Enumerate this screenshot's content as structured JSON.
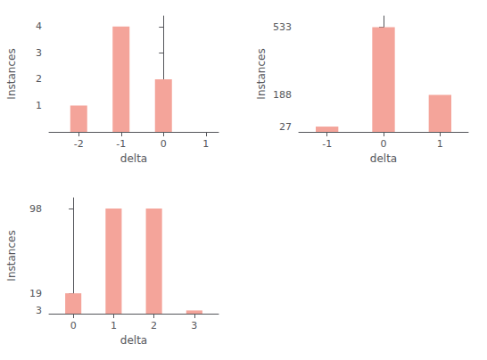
{
  "chart_data": [
    {
      "type": "bar",
      "x": [
        -2,
        -1,
        0
      ],
      "values": [
        1,
        4,
        2
      ],
      "xlim": [
        -2.7,
        1.3
      ],
      "ylim": [
        0,
        4.4
      ],
      "xticks": [
        -2,
        -1,
        0,
        1
      ],
      "yticks": [
        1,
        2,
        3,
        4
      ],
      "xlabel": "delta",
      "ylabel": "Instances",
      "color": "#F4A49A",
      "grid": false
    },
    {
      "type": "bar",
      "x": [
        -1,
        0,
        1
      ],
      "values": [
        27,
        533,
        188
      ],
      "xlim": [
        -1.5,
        1.5
      ],
      "ylim": [
        0,
        590
      ],
      "xticks": [
        -1,
        0,
        1
      ],
      "yticks": [
        27,
        188,
        533
      ],
      "xlabel": "delta",
      "ylabel": "Instances",
      "color": "#F4A49A",
      "grid": false
    },
    {
      "type": "bar",
      "x": [
        0,
        1,
        2,
        3
      ],
      "values": [
        19,
        98,
        98,
        3
      ],
      "xlim": [
        -0.6,
        3.6
      ],
      "ylim": [
        0,
        108
      ],
      "xticks": [
        0,
        1,
        2,
        3
      ],
      "yticks": [
        3,
        19,
        98
      ],
      "xlabel": "delta",
      "ylabel": "Instances",
      "color": "#F4A49A",
      "grid": false
    }
  ]
}
